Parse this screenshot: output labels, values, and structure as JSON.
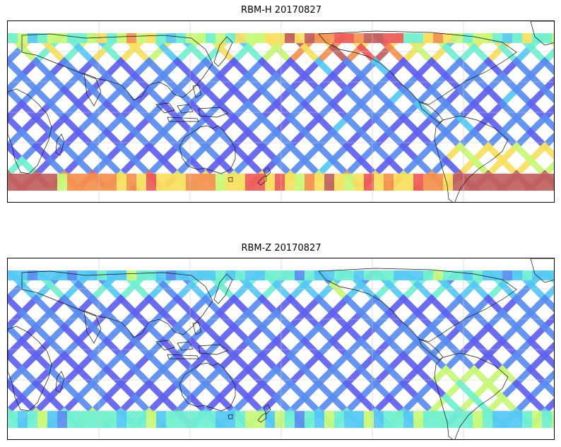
{
  "panels": [
    {
      "title": "RBM-H 20170827",
      "variant": "high",
      "palette": [
        "#6060ee",
        "#5a8cf0",
        "#55c8f5",
        "#70f0d0",
        "#c8f878",
        "#f8e060",
        "#f49050",
        "#ee5a5a",
        "#c06060"
      ]
    },
    {
      "title": "RBM-Z 20170827",
      "variant": "low",
      "palette": [
        "#6060ee",
        "#5a8cf0",
        "#55c8f5",
        "#70f0d0",
        "#c8f878",
        "#f8e060",
        "#f49050",
        "#ee5a5a"
      ]
    }
  ],
  "map": {
    "projection": "equirectangular",
    "central_longitude": 180,
    "lat_range": [
      -60,
      60
    ],
    "gridlines": true
  }
}
